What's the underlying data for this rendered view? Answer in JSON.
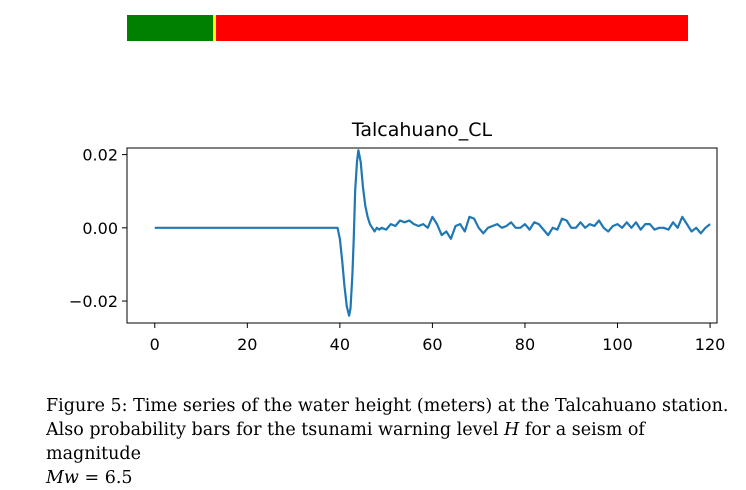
{
  "probability_bars": [
    {
      "level": "green",
      "value": 0.154,
      "color": "#008000"
    },
    {
      "level": "yellow",
      "value": 0.005,
      "color": "#ffff00"
    },
    {
      "level": "red",
      "value": 0.841,
      "color": "#ff0000"
    }
  ],
  "chart_data": {
    "type": "line",
    "title": "Talcahuano_CL",
    "xlabel": "",
    "ylabel": "",
    "xlim": [
      -6,
      121.5
    ],
    "ylim": [
      -0.026,
      0.0218
    ],
    "xticks": [
      0,
      20,
      40,
      60,
      80,
      100,
      120
    ],
    "xtick_labels": [
      "0",
      "20",
      "40",
      "60",
      "80",
      "100",
      "120"
    ],
    "yticks": [
      -0.02,
      0.0,
      0.02
    ],
    "ytick_labels": [
      "−0.02",
      "0.00",
      "0.02"
    ],
    "grid": false,
    "series": [
      {
        "name": "water height (m)",
        "color": "#1f77b4",
        "x": [
          0,
          10,
          20,
          30,
          39.5,
          40,
          40.5,
          41,
          41.5,
          42,
          42.3,
          42.7,
          43,
          43.3,
          43.7,
          44,
          44.5,
          45,
          45.5,
          46,
          46.5,
          47,
          47.5,
          48,
          48.5,
          49,
          50,
          51,
          52,
          53,
          54,
          55,
          56,
          57,
          58,
          59,
          60,
          61,
          62,
          63,
          64,
          65,
          66,
          67,
          68,
          69,
          70,
          71,
          72,
          73,
          74,
          75,
          76,
          77,
          78,
          79,
          80,
          81,
          82,
          83,
          84,
          85,
          86,
          87,
          88,
          89,
          90,
          91,
          92,
          93,
          94,
          95,
          96,
          97,
          98,
          99,
          100,
          101,
          102,
          103,
          104,
          105,
          106,
          107,
          108,
          109,
          110,
          111,
          112,
          113,
          114,
          115,
          116,
          117,
          118,
          119,
          120
        ],
        "y": [
          0,
          0,
          0,
          0,
          0,
          -0.003,
          -0.009,
          -0.016,
          -0.0215,
          -0.024,
          -0.022,
          -0.013,
          -0.003,
          0.01,
          0.018,
          0.0212,
          0.018,
          0.011,
          0.006,
          0.003,
          0.001,
          0.0,
          -0.001,
          0.0,
          -0.0005,
          0.0,
          -0.0005,
          0.001,
          0.0005,
          0.002,
          0.0015,
          0.002,
          0.001,
          0.0005,
          0.001,
          0.0,
          0.003,
          0.001,
          -0.002,
          -0.001,
          -0.003,
          0.0005,
          0.001,
          -0.001,
          0.003,
          0.0025,
          0.0,
          -0.0015,
          0.0,
          0.0005,
          0.001,
          0.0,
          0.0005,
          0.0015,
          0.0,
          0.0,
          0.001,
          -0.0005,
          0.0015,
          0.001,
          -0.0005,
          -0.002,
          0.0,
          -0.0005,
          0.0025,
          0.002,
          0.0,
          0.0,
          0.0015,
          0.0,
          0.001,
          0.0005,
          0.002,
          0.0,
          -0.001,
          0.0005,
          0.001,
          0.0,
          0.0015,
          0.0,
          0.0015,
          -0.0005,
          0.001,
          0.001,
          -0.0005,
          0.0,
          0.0,
          -0.0005,
          0.0015,
          0.0,
          0.003,
          0.001,
          -0.001,
          0.0,
          -0.0015,
          0.0,
          0.001
        ]
      }
    ]
  },
  "caption": {
    "figure_label": "Figure 5:",
    "line1_text": " Time series of the water height (meters) at the Talcahuano station.",
    "line2_text": "Also probability bars for the tsunami warning level ",
    "line2_var": "H",
    "line2_tail": " for a seism of magnitude",
    "line3_var": "Mw",
    "line3_tail": " = 6.5"
  }
}
